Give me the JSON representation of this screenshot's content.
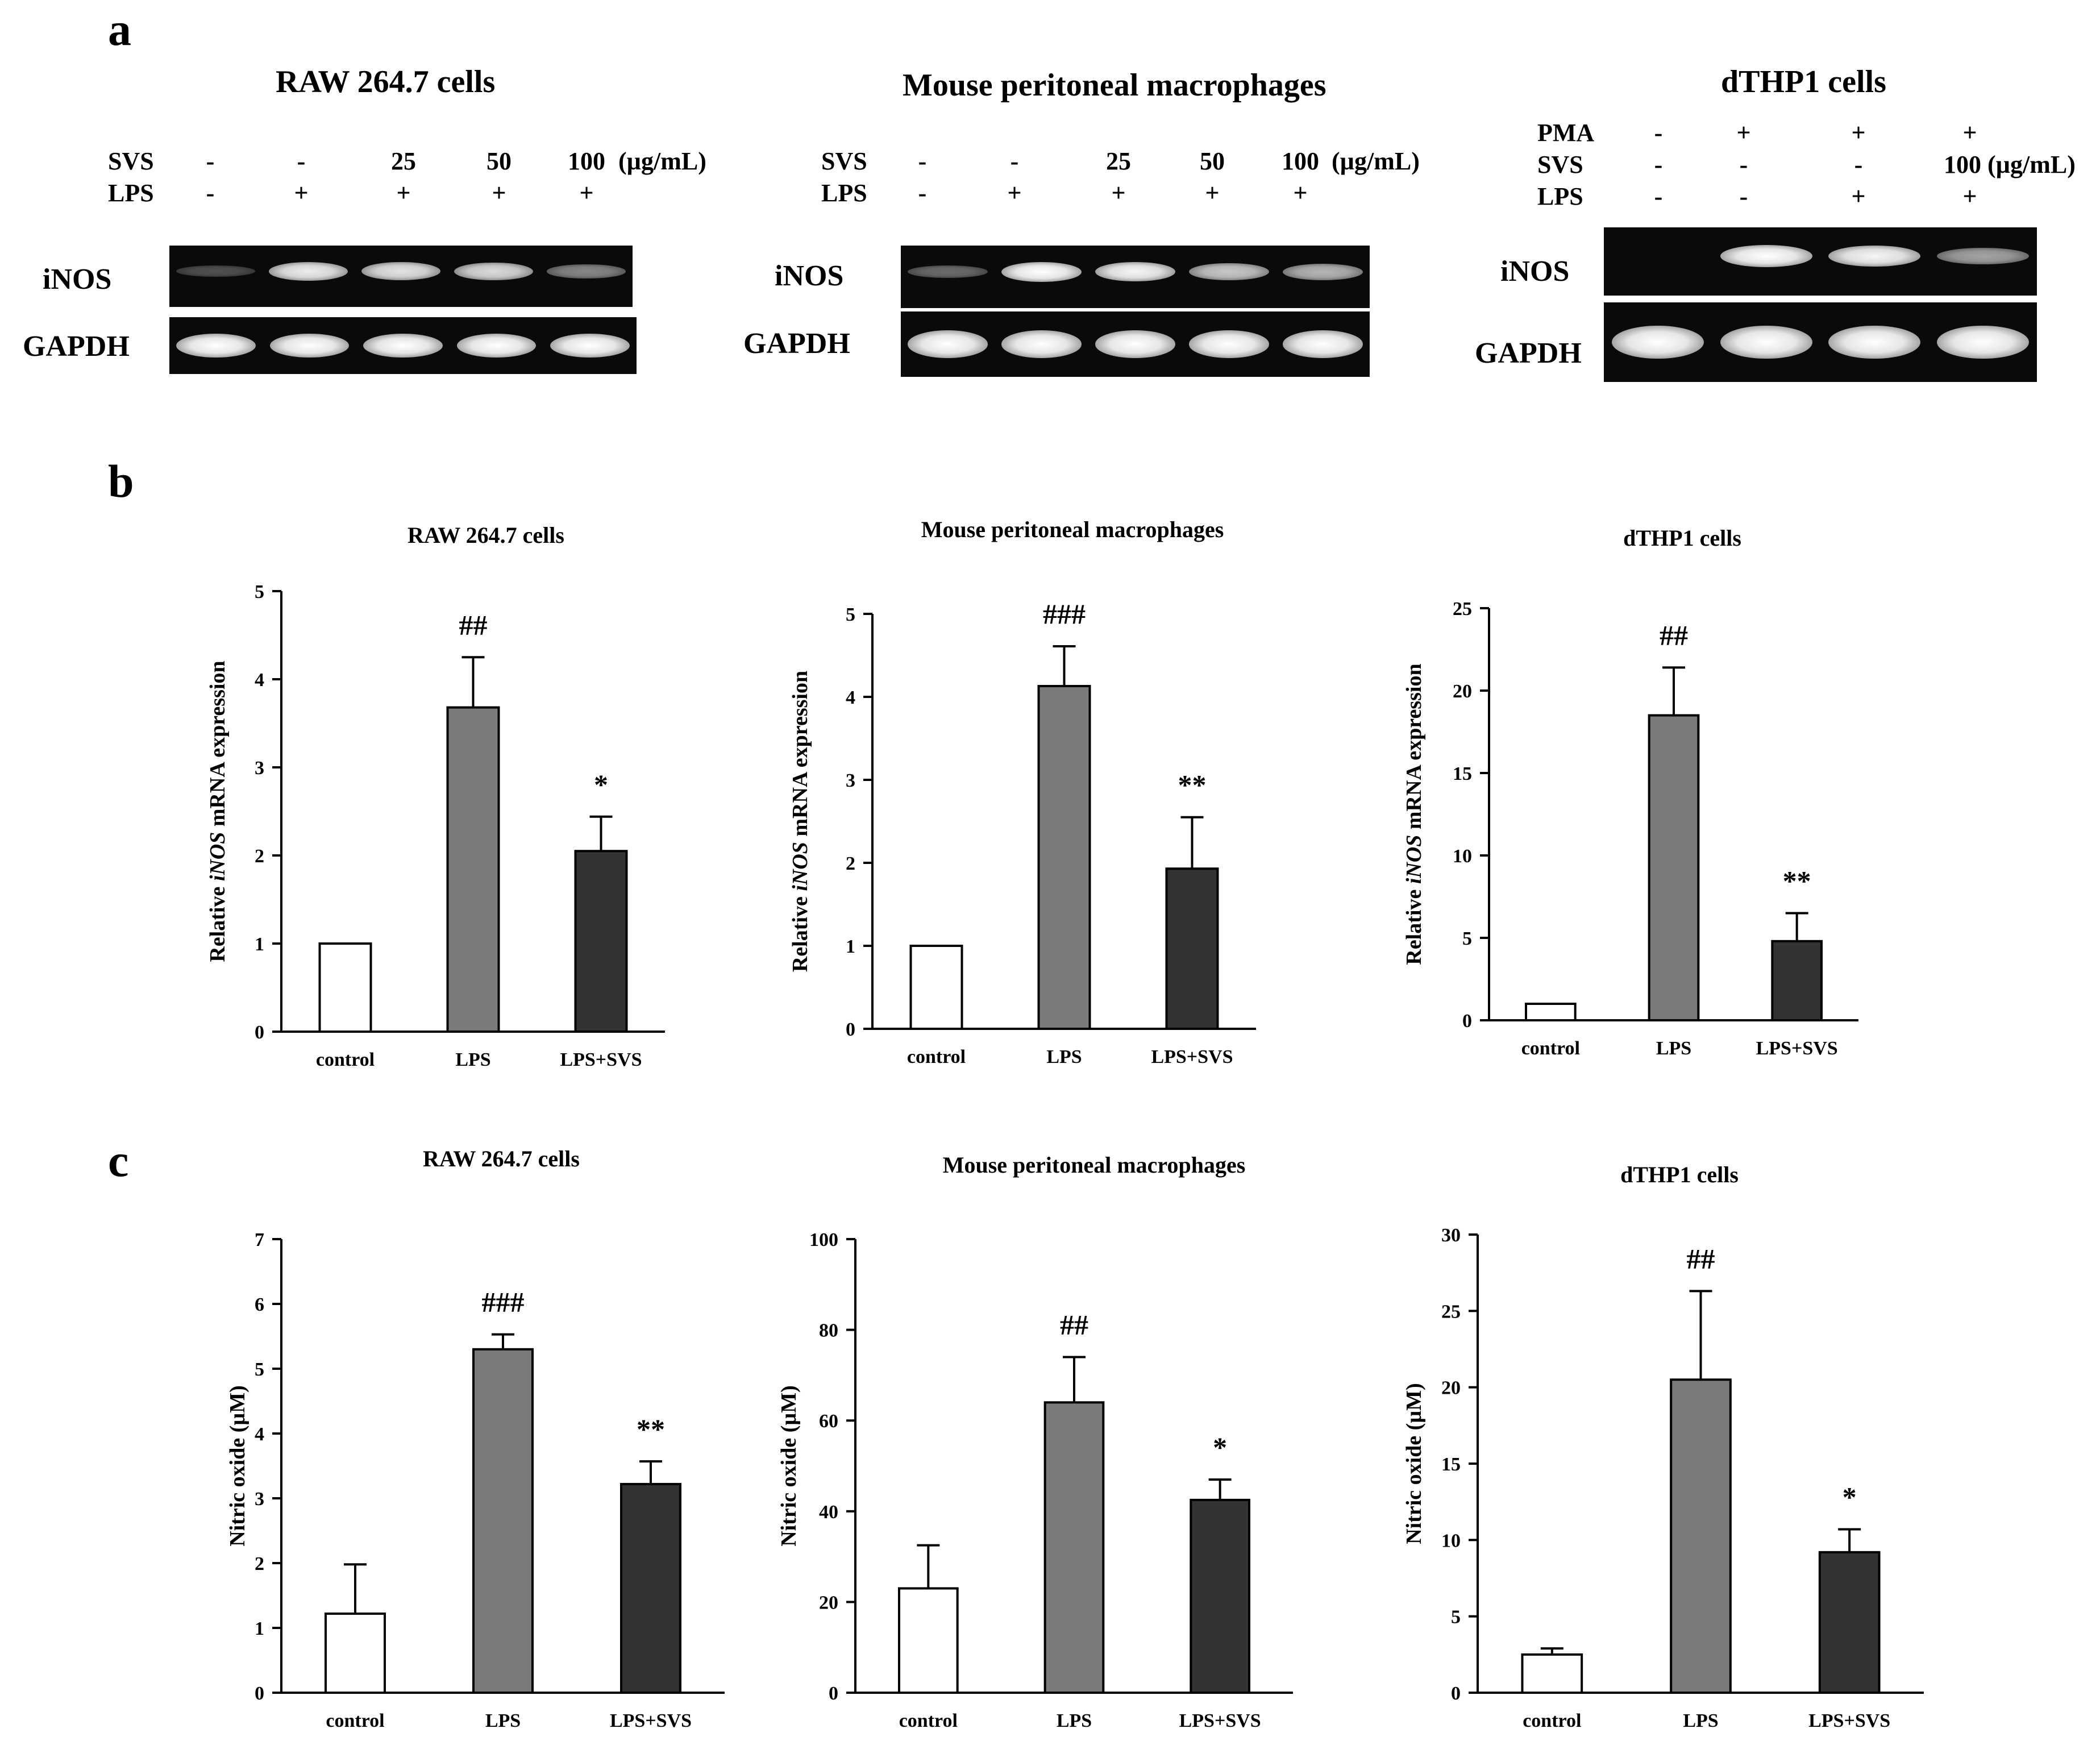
{
  "panels": {
    "a": "a",
    "b": "b",
    "c": "c"
  },
  "gels": [
    {
      "title": "RAW 264.7 cells",
      "conditions": [
        {
          "label": "SVS",
          "values": [
            "-",
            "-",
            "25",
            "50",
            "100"
          ],
          "unit": "(µg/mL)"
        },
        {
          "label": "LPS",
          "values": [
            "-",
            "+",
            "+",
            "+",
            "+"
          ],
          "unit": ""
        }
      ],
      "genes": [
        "iNOS",
        "GAPDH"
      ],
      "band_intensity": {
        "iNOS": [
          0.05,
          0.9,
          0.85,
          0.8,
          0.35
        ],
        "GAPDH": [
          1,
          1,
          1,
          1,
          1
        ]
      }
    },
    {
      "title": "Mouse peritoneal macrophages",
      "conditions": [
        {
          "label": "SVS",
          "values": [
            "-",
            "-",
            "25",
            "50",
            "100"
          ],
          "unit": "(µg/mL)"
        },
        {
          "label": "LPS",
          "values": [
            "-",
            "+",
            "+",
            "+",
            "+"
          ],
          "unit": ""
        }
      ],
      "genes": [
        "iNOS",
        "GAPDH"
      ],
      "band_intensity": {
        "iNOS": [
          0.2,
          1,
          0.95,
          0.7,
          0.6
        ],
        "GAPDH": [
          1,
          1,
          1,
          1,
          1
        ]
      }
    },
    {
      "title": "dTHP1 cells",
      "conditions": [
        {
          "label": "PMA",
          "values": [
            "-",
            "+",
            "+",
            "+"
          ],
          "unit": ""
        },
        {
          "label": "SVS",
          "values": [
            "-",
            "-",
            "-",
            "100 (µg/mL)"
          ],
          "unit": ""
        },
        {
          "label": "LPS",
          "values": [
            "-",
            "-",
            "+",
            "+"
          ],
          "unit": ""
        }
      ],
      "genes": [
        "iNOS",
        "GAPDH"
      ],
      "band_intensity": {
        "iNOS": [
          0.0,
          1,
          0.95,
          0.5
        ],
        "GAPDH": [
          1,
          1,
          1,
          1
        ]
      }
    }
  ],
  "chart_data": [
    {
      "type": "bar",
      "panel": "b",
      "title": "RAW 264.7  cells",
      "ylabel_pre": "Relative ",
      "ylabel_italic": "iNOS",
      "ylabel_post": " mRNA expression",
      "categories": [
        "control",
        "LPS",
        "LPS+SVS"
      ],
      "values": [
        1.0,
        3.68,
        2.05
      ],
      "errors": [
        0,
        0.57,
        0.39
      ],
      "annotations": [
        "",
        "##",
        "*"
      ],
      "ylim": [
        0,
        5
      ],
      "yticks": [
        0,
        1,
        2,
        3,
        4,
        5
      ],
      "colors": [
        "#ffffff",
        "#7a7a7a",
        "#333333"
      ]
    },
    {
      "type": "bar",
      "panel": "b",
      "title": "Mouse peritoneal macrophages",
      "ylabel_pre": "Relative ",
      "ylabel_italic": "iNOS",
      "ylabel_post": " mRNA expression",
      "categories": [
        "control",
        "LPS",
        "LPS+SVS"
      ],
      "values": [
        1.0,
        4.13,
        1.93
      ],
      "errors": [
        0,
        0.48,
        0.62
      ],
      "annotations": [
        "",
        "###",
        "**"
      ],
      "ylim": [
        0,
        5
      ],
      "yticks": [
        0,
        1,
        2,
        3,
        4,
        5
      ],
      "colors": [
        "#ffffff",
        "#7a7a7a",
        "#333333"
      ]
    },
    {
      "type": "bar",
      "panel": "b",
      "title": "dTHP1 cells",
      "ylabel_pre": "Relative ",
      "ylabel_italic": "iNOS",
      "ylabel_post": " mRNA expression",
      "categories": [
        "control",
        "LPS",
        "LPS+SVS"
      ],
      "values": [
        1.0,
        18.5,
        4.8
      ],
      "errors": [
        0,
        2.9,
        1.7
      ],
      "annotations": [
        "",
        "##",
        "**"
      ],
      "ylim": [
        0,
        25
      ],
      "yticks": [
        0,
        5,
        10,
        15,
        20,
        25
      ],
      "colors": [
        "#ffffff",
        "#7a7a7a",
        "#333333"
      ]
    },
    {
      "type": "bar",
      "panel": "c",
      "title": "RAW 264.7 cells",
      "ylabel_pre": "Nitric oxide (µM)",
      "ylabel_italic": "",
      "ylabel_post": "",
      "categories": [
        "control",
        "LPS",
        "LPS+SVS"
      ],
      "values": [
        1.22,
        5.3,
        3.22
      ],
      "errors": [
        0.76,
        0.23,
        0.35
      ],
      "annotations": [
        "",
        "###",
        "**"
      ],
      "ylim": [
        0,
        7
      ],
      "yticks": [
        0,
        1,
        2,
        3,
        4,
        5,
        6,
        7
      ],
      "colors": [
        "#ffffff",
        "#7a7a7a",
        "#333333"
      ]
    },
    {
      "type": "bar",
      "panel": "c",
      "title": "Mouse peritoneal macrophages",
      "ylabel_pre": "Nitric oxide (µM)",
      "ylabel_italic": "",
      "ylabel_post": "",
      "categories": [
        "control",
        "LPS",
        "LPS+SVS"
      ],
      "values": [
        23,
        64,
        42.5
      ],
      "errors": [
        9.5,
        10,
        4.5
      ],
      "annotations": [
        "",
        "##",
        "*"
      ],
      "ylim": [
        0,
        100
      ],
      "yticks": [
        0,
        20,
        40,
        60,
        80,
        100
      ],
      "colors": [
        "#ffffff",
        "#7a7a7a",
        "#333333"
      ]
    },
    {
      "type": "bar",
      "panel": "c",
      "title": "dTHP1 cells",
      "ylabel_pre": "Nitric oxide (µM)",
      "ylabel_italic": "",
      "ylabel_post": "",
      "categories": [
        "control",
        "LPS",
        "LPS+SVS"
      ],
      "values": [
        2.5,
        20.5,
        9.2
      ],
      "errors": [
        0.4,
        5.8,
        1.5
      ],
      "annotations": [
        "",
        "##",
        "*"
      ],
      "ylim": [
        0,
        30
      ],
      "yticks": [
        0,
        5,
        10,
        15,
        20,
        25,
        30
      ],
      "colors": [
        "#ffffff",
        "#7a7a7a",
        "#333333"
      ]
    }
  ]
}
